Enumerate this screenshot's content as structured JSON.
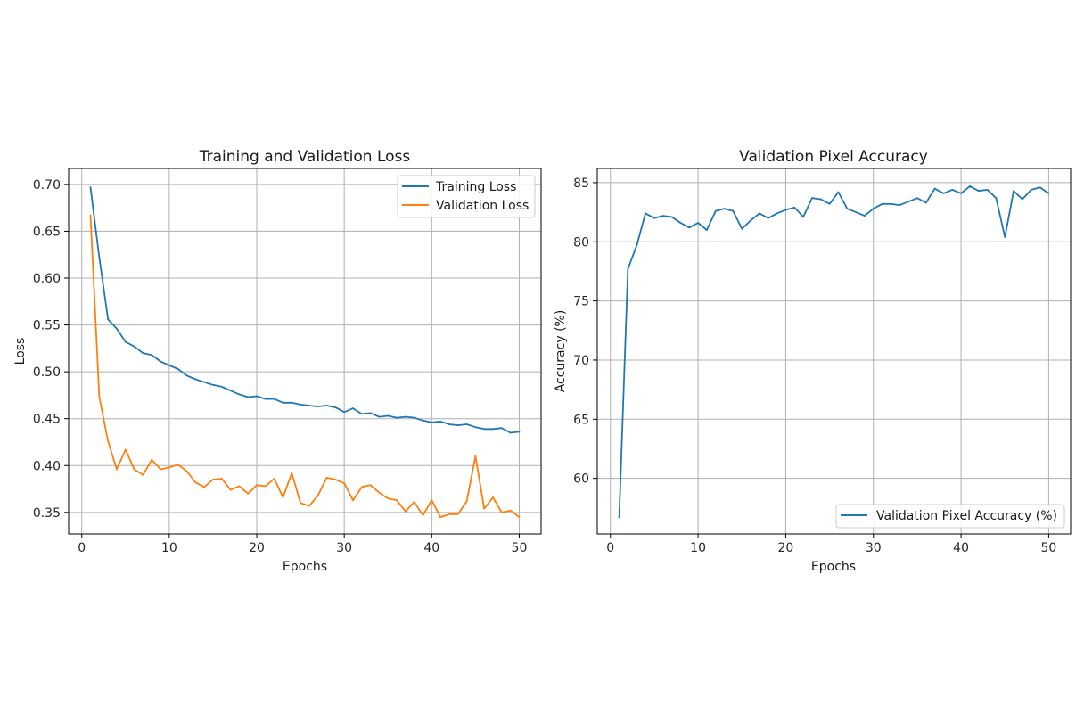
{
  "colors": {
    "training": "#1f77b4",
    "validation": "#ff7f0e",
    "accuracy": "#1f77b4",
    "grid": "#b0b0b0"
  },
  "chart_data": [
    {
      "type": "line",
      "title": "Training and Validation Loss",
      "xlabel": "Epochs",
      "ylabel": "Loss",
      "xlim": [
        -1.5,
        52.5
      ],
      "ylim": [
        0.327,
        0.717
      ],
      "xticks": [
        0,
        10,
        20,
        30,
        40,
        50
      ],
      "yticks": [
        0.35,
        0.4,
        0.45,
        0.5,
        0.55,
        0.6,
        0.65,
        0.7
      ],
      "ytick_labels": [
        "0.35",
        "0.40",
        "0.45",
        "0.50",
        "0.55",
        "0.60",
        "0.65",
        "0.70"
      ],
      "grid": true,
      "legend_position": "upper right",
      "x": [
        1,
        2,
        3,
        4,
        5,
        6,
        7,
        8,
        9,
        10,
        11,
        12,
        13,
        14,
        15,
        16,
        17,
        18,
        19,
        20,
        21,
        22,
        23,
        24,
        25,
        26,
        27,
        28,
        29,
        30,
        31,
        32,
        33,
        34,
        35,
        36,
        37,
        38,
        39,
        40,
        41,
        42,
        43,
        44,
        45,
        46,
        47,
        48,
        49,
        50
      ],
      "series": [
        {
          "name": "Training Loss",
          "color": "#1f77b4",
          "values": [
            0.697,
            0.622,
            0.556,
            0.546,
            0.532,
            0.527,
            0.52,
            0.518,
            0.511,
            0.507,
            0.503,
            0.496,
            0.492,
            0.489,
            0.486,
            0.484,
            0.48,
            0.476,
            0.473,
            0.474,
            0.471,
            0.471,
            0.467,
            0.467,
            0.465,
            0.464,
            0.463,
            0.464,
            0.462,
            0.457,
            0.461,
            0.455,
            0.456,
            0.452,
            0.453,
            0.451,
            0.452,
            0.451,
            0.448,
            0.446,
            0.447,
            0.444,
            0.443,
            0.444,
            0.441,
            0.439,
            0.439,
            0.44,
            0.435,
            0.436
          ]
        },
        {
          "name": "Validation Loss",
          "color": "#ff7f0e",
          "values": [
            0.667,
            0.473,
            0.426,
            0.396,
            0.417,
            0.396,
            0.39,
            0.406,
            0.396,
            0.398,
            0.401,
            0.394,
            0.382,
            0.377,
            0.385,
            0.386,
            0.374,
            0.378,
            0.37,
            0.379,
            0.378,
            0.386,
            0.366,
            0.392,
            0.36,
            0.357,
            0.368,
            0.387,
            0.385,
            0.381,
            0.363,
            0.377,
            0.379,
            0.371,
            0.365,
            0.363,
            0.351,
            0.361,
            0.347,
            0.363,
            0.345,
            0.348,
            0.348,
            0.362,
            0.41,
            0.354,
            0.366,
            0.35,
            0.352,
            0.345
          ]
        }
      ]
    },
    {
      "type": "line",
      "title": "Validation Pixel Accuracy",
      "xlabel": "Epochs",
      "ylabel": "Accuracy (%)",
      "xlim": [
        -1.5,
        52.5
      ],
      "ylim": [
        55.3,
        86.2
      ],
      "xticks": [
        0,
        10,
        20,
        30,
        40,
        50
      ],
      "yticks": [
        60,
        65,
        70,
        75,
        80,
        85
      ],
      "ytick_labels": [
        "60",
        "65",
        "70",
        "75",
        "80",
        "85"
      ],
      "grid": true,
      "legend_position": "lower right",
      "x": [
        1,
        2,
        3,
        4,
        5,
        6,
        7,
        8,
        9,
        10,
        11,
        12,
        13,
        14,
        15,
        16,
        17,
        18,
        19,
        20,
        21,
        22,
        23,
        24,
        25,
        26,
        27,
        28,
        29,
        30,
        31,
        32,
        33,
        34,
        35,
        36,
        37,
        38,
        39,
        40,
        41,
        42,
        43,
        44,
        45,
        46,
        47,
        48,
        49,
        50
      ],
      "series": [
        {
          "name": "Validation Pixel Accuracy (%)",
          "color": "#1f77b4",
          "values": [
            56.7,
            77.7,
            79.7,
            82.4,
            82.0,
            82.2,
            82.1,
            81.6,
            81.2,
            81.6,
            81.0,
            82.6,
            82.8,
            82.6,
            81.1,
            81.8,
            82.4,
            82.0,
            82.4,
            82.7,
            82.9,
            82.1,
            83.7,
            83.6,
            83.2,
            84.2,
            82.8,
            82.5,
            82.2,
            82.8,
            83.2,
            83.2,
            83.1,
            83.4,
            83.7,
            83.3,
            84.5,
            84.1,
            84.4,
            84.1,
            84.7,
            84.3,
            84.4,
            83.7,
            80.4,
            84.3,
            83.6,
            84.4,
            84.6,
            84.1
          ]
        }
      ]
    }
  ]
}
